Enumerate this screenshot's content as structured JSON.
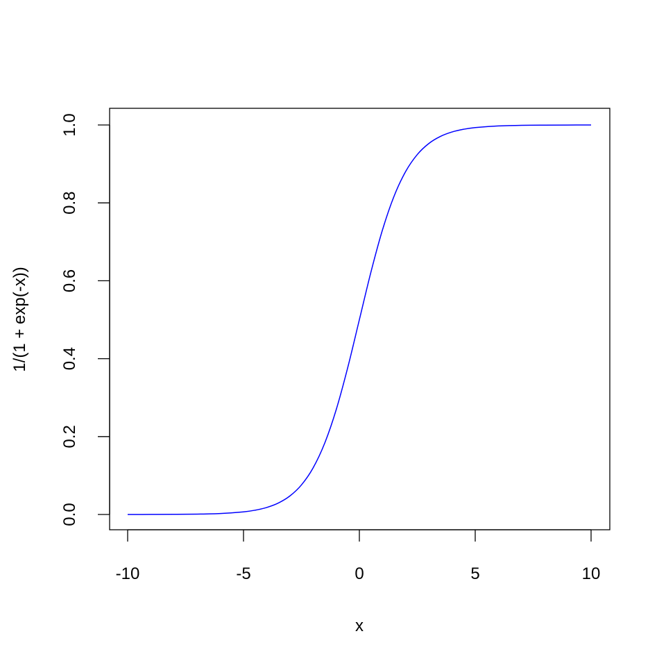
{
  "chart_data": {
    "type": "line",
    "title": "",
    "xlabel": "x",
    "ylabel": "1/(1 + exp(-x))",
    "xlim": [
      -10,
      10
    ],
    "ylim": [
      0,
      1
    ],
    "x_ticks": [
      "-10",
      "-5",
      "0",
      "5",
      "10"
    ],
    "y_ticks": [
      "0.0",
      "0.2",
      "0.4",
      "0.6",
      "0.8",
      "1.0"
    ],
    "grid": false,
    "series": [
      {
        "color": "#0000ff",
        "x": [
          -10,
          -9,
          -8,
          -7,
          -6,
          -5,
          -4.5,
          -4,
          -3.5,
          -3,
          -2.5,
          -2,
          -1.5,
          -1,
          -0.5,
          0,
          0.5,
          1,
          1.5,
          2,
          2.5,
          3,
          3.5,
          4,
          4.5,
          5,
          6,
          7,
          8,
          9,
          10
        ],
        "y": [
          4.54e-05,
          0.000123,
          0.000335,
          0.000911,
          0.002473,
          0.006693,
          0.010987,
          0.017986,
          0.029312,
          0.047426,
          0.075858,
          0.119203,
          0.182426,
          0.268941,
          0.377541,
          0.5,
          0.622459,
          0.731059,
          0.817574,
          0.880797,
          0.924142,
          0.952574,
          0.970688,
          0.982014,
          0.989013,
          0.993307,
          0.997527,
          0.999089,
          0.999665,
          0.999877,
          0.9999546
        ]
      }
    ]
  }
}
